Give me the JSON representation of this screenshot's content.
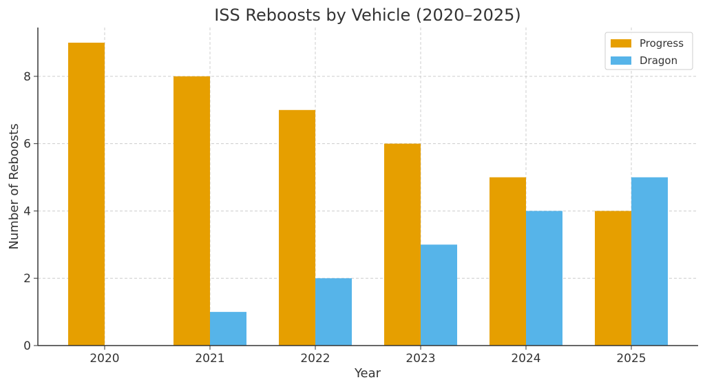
{
  "chart_data": {
    "type": "bar",
    "title": "ISS Reboosts by Vehicle (2020–2025)",
    "xlabel": "Year",
    "ylabel": "Number of Reboosts",
    "categories": [
      "2020",
      "2021",
      "2022",
      "2023",
      "2024",
      "2025"
    ],
    "series": [
      {
        "name": "Progress",
        "color": "#E69F00",
        "values": [
          9,
          8,
          7,
          6,
          5,
          4
        ]
      },
      {
        "name": "Dragon",
        "color": "#56B4E9",
        "values": [
          0,
          1,
          2,
          3,
          4,
          5
        ]
      }
    ],
    "ylim": [
      0,
      9.45
    ],
    "yticks": [
      0,
      2,
      4,
      6,
      8
    ],
    "grid": true,
    "legend_position": "top-right"
  }
}
